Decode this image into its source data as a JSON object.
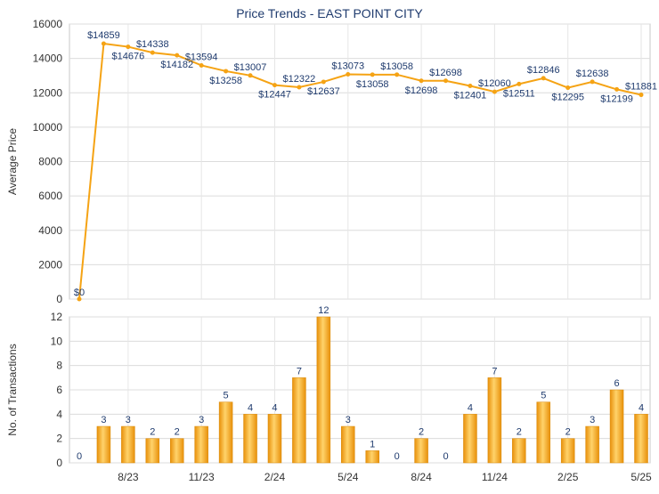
{
  "chart_data": [
    {
      "type": "line",
      "title": "Price Trends - EAST POINT CITY",
      "ylabel": "Average Price",
      "ylim": [
        0,
        16000
      ],
      "yticks": [
        0,
        2000,
        4000,
        6000,
        8000,
        10000,
        12000,
        14000,
        16000
      ],
      "grid": true,
      "color": "#f5a314",
      "values": [
        0,
        14859,
        14676,
        14338,
        14182,
        13594,
        13258,
        13007,
        12447,
        12322,
        12637,
        13073,
        13058,
        13058,
        12698,
        12698,
        12401,
        12060,
        12511,
        12846,
        12295,
        12638,
        12199,
        11881
      ],
      "labels": [
        "$0",
        "$14859",
        "$14676",
        "$14338",
        "$14182",
        "$13594",
        "$13258",
        "$13007",
        "$12447",
        "$12322",
        "$12637",
        "$13073",
        "$13058",
        "$13058",
        "$12698",
        "$12698",
        "$12401",
        "$12060",
        "$12511",
        "$12846",
        "$12295",
        "$12638",
        "$12199",
        "$11881"
      ]
    },
    {
      "type": "bar",
      "ylabel": "No. of Transactions",
      "ylim": [
        0,
        12
      ],
      "yticks": [
        0,
        2,
        4,
        6,
        8,
        10,
        12
      ],
      "grid": true,
      "color": "#f5a314",
      "values": [
        0,
        3,
        3,
        2,
        2,
        3,
        5,
        4,
        4,
        7,
        12,
        3,
        1,
        0,
        2,
        0,
        4,
        7,
        2,
        5,
        2,
        3,
        6,
        4
      ],
      "xticks": [
        "8/23",
        "11/23",
        "2/24",
        "5/24",
        "8/24",
        "11/24",
        "2/25",
        "5/25"
      ]
    }
  ]
}
